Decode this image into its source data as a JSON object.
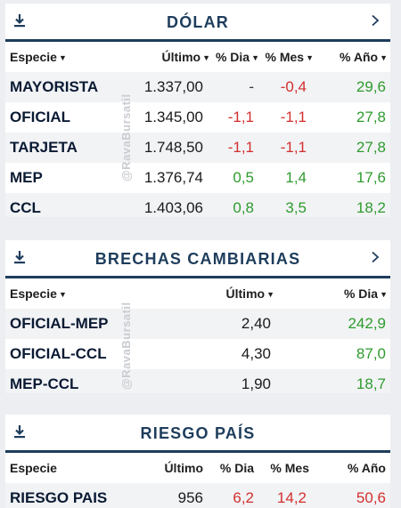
{
  "watermark": "@RavaBursatil",
  "dolar": {
    "title": "DÓLAR",
    "headers": {
      "especie": "Especie",
      "ultimo": "Último",
      "dia": "% Dia",
      "mes": "% Mes",
      "anio": "% Año"
    },
    "rows": [
      {
        "name": "MAYORISTA",
        "ultimo": "1.337,00",
        "dia": "-",
        "mes": "-0,4",
        "anio": "29,6"
      },
      {
        "name": "OFICIAL",
        "ultimo": "1.345,00",
        "dia": "-1,1",
        "mes": "-1,1",
        "anio": "27,8"
      },
      {
        "name": "TARJETA",
        "ultimo": "1.748,50",
        "dia": "-1,1",
        "mes": "-1,1",
        "anio": "27,8"
      },
      {
        "name": "MEP",
        "ultimo": "1.376,74",
        "dia": "0,5",
        "mes": "1,4",
        "anio": "17,6"
      },
      {
        "name": "CCL",
        "ultimo": "1.403,06",
        "dia": "0,8",
        "mes": "3,5",
        "anio": "18,2"
      }
    ]
  },
  "brechas": {
    "title": "BRECHAS CAMBIARIAS",
    "headers": {
      "especie": "Especie",
      "ultimo": "Último",
      "dia": "% Dia"
    },
    "rows": [
      {
        "name": "OFICIAL-MEP",
        "ultimo": "2,40",
        "dia": "242,9"
      },
      {
        "name": "OFICIAL-CCL",
        "ultimo": "4,30",
        "dia": "87,0"
      },
      {
        "name": "MEP-CCL",
        "ultimo": "1,90",
        "dia": "18,7"
      }
    ]
  },
  "riesgo": {
    "title": "RIESGO PAÍS",
    "headers": {
      "especie": "Especie",
      "ultimo": "Último",
      "dia": "% Dia",
      "mes": "% Mes",
      "anio": "% Año"
    },
    "rows": [
      {
        "name": "RIESGO PAIS",
        "ultimo": "956",
        "dia": "6,2",
        "mes": "14,2",
        "anio": "50,6"
      }
    ]
  },
  "colors": {
    "navy": "#1e3d5c",
    "negative": "#d32f2f",
    "positive": "#2e9b2e"
  }
}
